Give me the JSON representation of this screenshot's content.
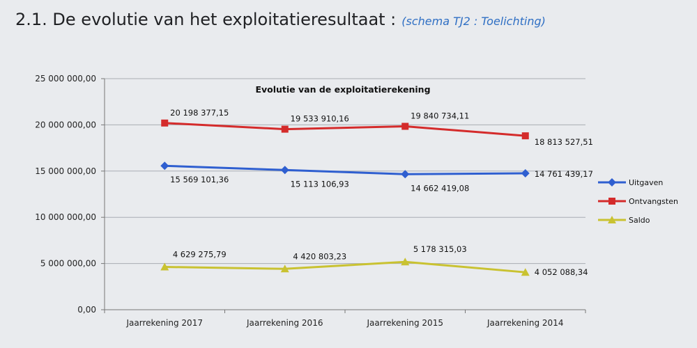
{
  "heading": {
    "main": "2.1. De evolutie van het exploitatieresultaat :",
    "reference": "(schema TJ2 : Toelichting)"
  },
  "chart_data": {
    "type": "line",
    "title": "Evolutie van de exploitatierekening",
    "categories": [
      "Jaarrekening 2017",
      "Jaarrekening 2016",
      "Jaarrekening 2015",
      "Jaarrekening 2014"
    ],
    "ylim": [
      0,
      25000000
    ],
    "yticks": [
      0,
      5000000,
      10000000,
      15000000,
      20000000,
      25000000
    ],
    "ytick_labels": [
      "0,00",
      "5 000 000,00",
      "10 000 000,00",
      "15 000 000,00",
      "20 000 000,00",
      "25 000 000,00"
    ],
    "grid": true,
    "legend_position": "right",
    "series": [
      {
        "name": "Uitgaven",
        "color": "#2f5fd0",
        "marker": "diamond",
        "values": [
          15569101.36,
          15113106.93,
          14662419.08,
          14761439.17
        ],
        "labels": [
          "15 569 101,36",
          "15 113 106,93",
          "14 662 419,08",
          "14 761 439,17"
        ]
      },
      {
        "name": "Ontvangsten",
        "color": "#d42b2b",
        "marker": "square",
        "values": [
          20198377.15,
          19533910.16,
          19840734.11,
          18813527.51
        ],
        "labels": [
          "20 198 377,15",
          "19 533 910,16",
          "19 840 734,11",
          "18 813 527,51"
        ]
      },
      {
        "name": "Saldo",
        "color": "#c9c231",
        "marker": "triangle",
        "values": [
          4629275.79,
          4420803.23,
          5178315.03,
          4052088.34
        ],
        "labels": [
          "4 629 275,79",
          "4 420 803,23",
          "5 178 315,03",
          "4 052 088,34"
        ]
      }
    ]
  }
}
